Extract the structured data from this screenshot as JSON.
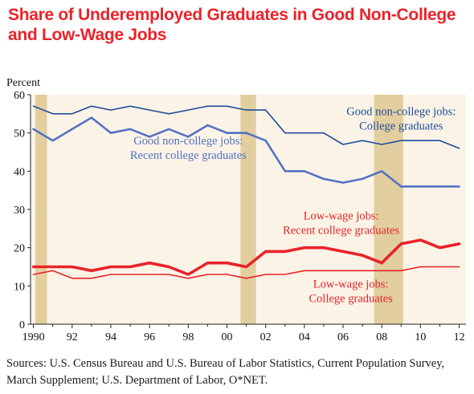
{
  "title": "Share of Underemployed Graduates in Good Non-College and Low-Wage Jobs",
  "source_note": "Sources: U.S. Census Bureau and U.S. Bureau of Labor Statistics, Current Population Survey, March Supplement; U.S. Department of Labor, O*NET.",
  "colors": {
    "title": "#e8232a",
    "plot_background": "#fbf3e6",
    "recession_shading": "#e2ce9f",
    "college_grads_good": "#1f4e9c",
    "recent_grads_good": "#5472c4",
    "recent_grads_lowwage": "#e8232a",
    "college_grads_lowwage": "#e8232a"
  },
  "chart_data": {
    "type": "line",
    "title": "Share of Underemployed Graduates in Good Non-College and Low-Wage Jobs",
    "xlabel": "",
    "ylabel": "Percent",
    "xlim": [
      1989.85,
      2012.35
    ],
    "ylim": [
      0,
      60
    ],
    "yticks": [
      0,
      10,
      20,
      30,
      40,
      50,
      60
    ],
    "xtick_values": [
      1990,
      1992,
      1994,
      1996,
      1998,
      2000,
      2002,
      2004,
      2006,
      2008,
      2010,
      2012
    ],
    "xtick_labels": [
      "1990",
      "92",
      "94",
      "96",
      "98",
      "00",
      "02",
      "04",
      "06",
      "08",
      "10",
      "12"
    ],
    "grid": false,
    "legend": "none",
    "shaded_periods": [
      {
        "start": 1990.1,
        "end": 1990.7
      },
      {
        "start": 2000.7,
        "end": 2001.5
      },
      {
        "start": 2007.6,
        "end": 2009.1
      }
    ],
    "x": [
      1990,
      1991,
      1992,
      1993,
      1994,
      1995,
      1996,
      1997,
      1998,
      1999,
      2000,
      2001,
      2002,
      2003,
      2004,
      2005,
      2006,
      2007,
      2008,
      2009,
      2010,
      2011,
      2012
    ],
    "series": [
      {
        "name": "Good non-college jobs: College graduates",
        "color": "#1f4e9c",
        "values": [
          57,
          55,
          55,
          57,
          56,
          57,
          56,
          55,
          56,
          57,
          57,
          56,
          56,
          50,
          50,
          50,
          47,
          48,
          47,
          48,
          48,
          48,
          46
        ]
      },
      {
        "name": "Good non-college jobs: Recent college graduates",
        "color": "#5472c4",
        "values": [
          51,
          48,
          51,
          54,
          50,
          51,
          49,
          51,
          49,
          52,
          50,
          50,
          48,
          40,
          40,
          38,
          37,
          38,
          40,
          36,
          36,
          36,
          36
        ]
      },
      {
        "name": "Low-wage jobs: Recent college graduates",
        "color": "#e8232a",
        "values": [
          15,
          15,
          15,
          14,
          15,
          15,
          16,
          15,
          13,
          16,
          16,
          15,
          19,
          19,
          20,
          20,
          19,
          18,
          16,
          21,
          22,
          20,
          21
        ]
      },
      {
        "name": "Low-wage jobs: College graduates",
        "color": "#e8232a",
        "values": [
          13,
          14,
          12,
          12,
          13,
          13,
          13,
          13,
          12,
          13,
          13,
          12,
          13,
          13,
          14,
          14,
          14,
          14,
          14,
          14,
          15,
          15,
          15
        ]
      }
    ],
    "annotations": [
      {
        "series": 0,
        "lines": [
          "Good non-college jobs:",
          "College graduates"
        ],
        "x": 2009.0,
        "y": 54.6,
        "color": "#1f4e9c"
      },
      {
        "series": 1,
        "lines": [
          "Good non-college jobs:",
          "Recent college graduates"
        ],
        "x": 1998.0,
        "y": 47.0,
        "color": "#5472c4"
      },
      {
        "series": 2,
        "lines": [
          "Low-wage jobs:",
          "Recent college graduates"
        ],
        "x": 2005.9,
        "y": 27.4,
        "color": "#e8232a"
      },
      {
        "series": 3,
        "lines": [
          "Low-wage jobs:",
          "College graduates"
        ],
        "x": 2006.4,
        "y": 9.5,
        "color": "#e8232a"
      }
    ]
  }
}
